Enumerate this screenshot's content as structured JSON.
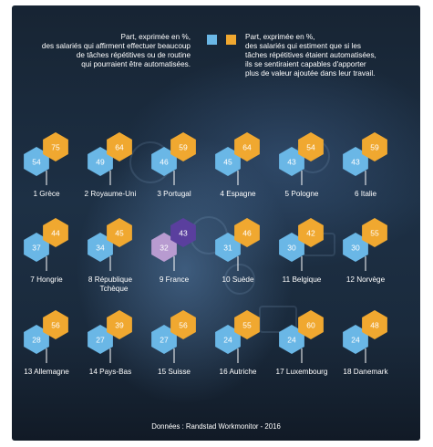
{
  "legend": {
    "left_lines": [
      "Part, exprimée en %,",
      "des salariés qui affirment effectuer beaucoup",
      "de tâches répétitives ou de routine",
      "qui pourraient être automatisées."
    ],
    "right_lines": [
      "Part, exprimée en %,",
      "des salariés qui estiment que si les",
      "tâches répétitives étaient automatisées,",
      "ils se sentiraient capables d'apporter",
      "plus de valeur ajoutée dans leur travail."
    ],
    "colors": {
      "repetitive": "#6ab7e6",
      "value": "#f0a830",
      "france_repetitive": "#b89bd0",
      "france_value": "#5a3f9e"
    }
  },
  "chart_data": {
    "type": "table",
    "series": [
      {
        "color": "#6ab7e6",
        "values": [
          54,
          49,
          46,
          45,
          43,
          43,
          37,
          34,
          32,
          31,
          30,
          30,
          28,
          27,
          27,
          24,
          24,
          24
        ]
      },
      {
        "color": "#f0a830",
        "values": [
          75,
          64,
          59,
          64,
          54,
          59,
          44,
          45,
          43,
          46,
          42,
          55,
          56,
          39,
          56,
          55,
          60,
          48
        ]
      }
    ],
    "countries": [
      {
        "label": "1  Grèce"
      },
      {
        "label": "2  Royaume-Uni"
      },
      {
        "label": "3  Portugal"
      },
      {
        "label": "4  Espagne"
      },
      {
        "label": "5  Pologne"
      },
      {
        "label": "6  Italie"
      },
      {
        "label": "7  Hongrie"
      },
      {
        "label": "8  République",
        "label2": "Tchèque"
      },
      {
        "label": "9  France",
        "highlight": true
      },
      {
        "label": "10  Suède"
      },
      {
        "label": "11  Belgique"
      },
      {
        "label": "12  Norvège"
      },
      {
        "label": "13  Allemagne"
      },
      {
        "label": "14  Pays-Bas"
      },
      {
        "label": "15  Suisse"
      },
      {
        "label": "16  Autriche"
      },
      {
        "label": "17  Luxembourg"
      },
      {
        "label": "18  Danemark"
      }
    ]
  },
  "footer": {
    "source": "Données : Randstad Workmonitor - 2016"
  }
}
